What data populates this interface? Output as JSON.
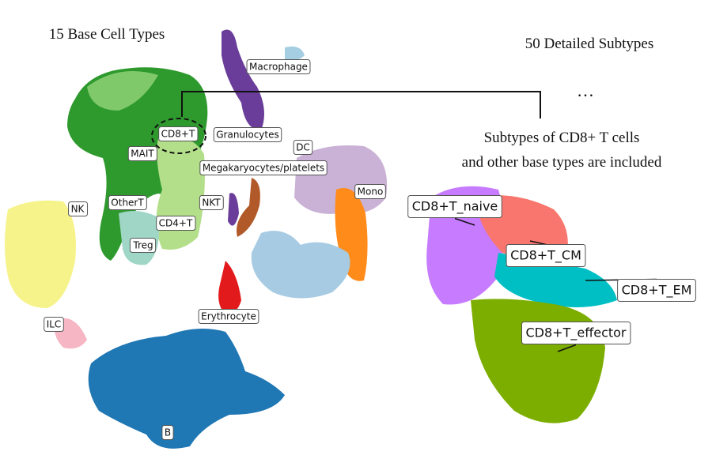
{
  "left": {
    "title": "15 Base Cell Types",
    "labels": [
      "Macrophage",
      "CD8+T",
      "Granulocytes",
      "DC",
      "MAIT",
      "Megakaryocytes/platelets",
      "Mono",
      "NK",
      "OtherT",
      "NKT",
      "CD4+T",
      "Treg",
      "ILC",
      "Erythrocyte",
      "B"
    ]
  },
  "right": {
    "title": "50 Detailed Subtypes",
    "ellipsis": "…",
    "caption": [
      "Subtypes of CD8+ T cells",
      "and other base types are included"
    ],
    "labels": [
      "CD8+T_naive",
      "CD8+T_CM",
      "CD8+T_EM",
      "CD8+T_effector"
    ]
  }
}
